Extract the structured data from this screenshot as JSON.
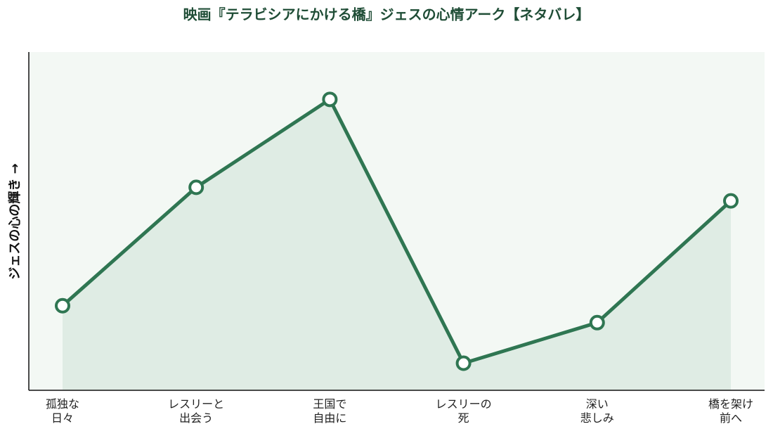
{
  "chart_data": {
    "type": "line",
    "title": "映画『テラビシアにかける橋』ジェスの心情アーク【ネタバレ】",
    "y_label": "ジェスの心の輝き →",
    "categories": [
      "孤独な\n日々",
      "レスリーと\n出会う",
      "王国で\n自由に",
      "レスリーの\n死",
      "深い\n悲しみ",
      "橋を架け\n前へ"
    ],
    "values": [
      2.5,
      6.0,
      8.6,
      0.8,
      2.0,
      5.6
    ],
    "ylim": [
      0,
      10
    ],
    "color": "#2f7652",
    "area_color": "#dfece4",
    "background": "#f3f8f4"
  }
}
